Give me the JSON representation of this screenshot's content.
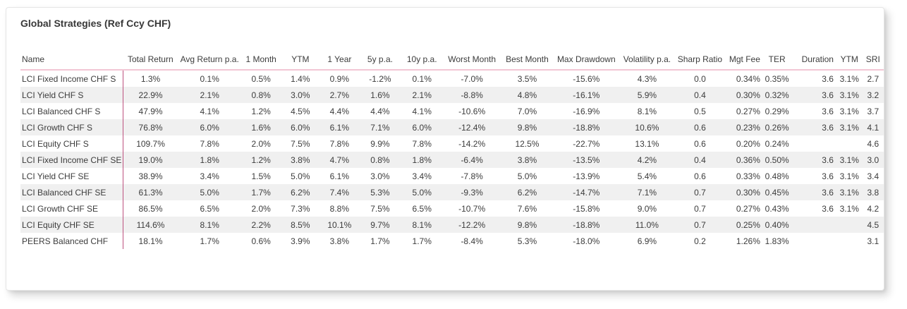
{
  "colors": {
    "accent_line": "#bd517e",
    "header_underline": "#f2c6d4",
    "row_stripe": "#f0f0f0"
  },
  "chart_data": {
    "type": "table",
    "title": "Global Strategies (Ref Ccy CHF)",
    "columns": [
      "Name",
      "Total Return",
      "Avg Return p.a.",
      "1 Month",
      "YTM",
      "1 Year",
      "5y p.a.",
      "10y p.a.",
      "Worst Month",
      "Best Month",
      "Max Drawdown",
      "Volatility p.a.",
      "Sharp Ratio",
      "Mgt Fee",
      "TER",
      "Duration",
      "YTM",
      "SRI"
    ],
    "rows": [
      [
        "LCI Fixed Income CHF S",
        "1.3%",
        "0.1%",
        "0.5%",
        "1.4%",
        "0.9%",
        "-1.2%",
        "0.1%",
        "-7.0%",
        "3.5%",
        "-15.6%",
        "4.3%",
        "0.0",
        "0.34%",
        "0.35%",
        "3.6",
        "3.1%",
        "2.7"
      ],
      [
        "LCI Yield CHF S",
        "22.9%",
        "2.1%",
        "0.8%",
        "3.0%",
        "2.7%",
        "1.6%",
        "2.1%",
        "-8.8%",
        "4.8%",
        "-16.1%",
        "5.9%",
        "0.4",
        "0.30%",
        "0.32%",
        "3.6",
        "3.1%",
        "3.2"
      ],
      [
        "LCI Balanced CHF S",
        "47.9%",
        "4.1%",
        "1.2%",
        "4.5%",
        "4.4%",
        "4.4%",
        "4.1%",
        "-10.6%",
        "7.0%",
        "-16.9%",
        "8.1%",
        "0.5",
        "0.27%",
        "0.29%",
        "3.6",
        "3.1%",
        "3.7"
      ],
      [
        "LCI Growth CHF S",
        "76.8%",
        "6.0%",
        "1.6%",
        "6.0%",
        "6.1%",
        "7.1%",
        "6.0%",
        "-12.4%",
        "9.8%",
        "-18.8%",
        "10.6%",
        "0.6",
        "0.23%",
        "0.26%",
        "3.6",
        "3.1%",
        "4.1"
      ],
      [
        "LCI Equity CHF S",
        "109.7%",
        "7.8%",
        "2.0%",
        "7.5%",
        "7.8%",
        "9.9%",
        "7.8%",
        "-14.2%",
        "12.5%",
        "-22.7%",
        "13.1%",
        "0.6",
        "0.20%",
        "0.24%",
        "",
        "",
        "4.6"
      ],
      [
        "LCI Fixed Income CHF SE",
        "19.0%",
        "1.8%",
        "1.2%",
        "3.8%",
        "4.7%",
        "0.8%",
        "1.8%",
        "-6.4%",
        "3.8%",
        "-13.5%",
        "4.2%",
        "0.4",
        "0.36%",
        "0.50%",
        "3.6",
        "3.1%",
        "3.0"
      ],
      [
        "LCI Yield CHF SE",
        "38.9%",
        "3.4%",
        "1.5%",
        "5.0%",
        "6.1%",
        "3.0%",
        "3.4%",
        "-7.8%",
        "5.0%",
        "-13.9%",
        "5.4%",
        "0.6",
        "0.33%",
        "0.48%",
        "3.6",
        "3.1%",
        "3.4"
      ],
      [
        "LCI Balanced CHF SE",
        "61.3%",
        "5.0%",
        "1.7%",
        "6.2%",
        "7.4%",
        "5.3%",
        "5.0%",
        "-9.3%",
        "6.2%",
        "-14.7%",
        "7.1%",
        "0.7",
        "0.30%",
        "0.45%",
        "3.6",
        "3.1%",
        "3.8"
      ],
      [
        "LCI Growth CHF SE",
        "86.5%",
        "6.5%",
        "2.0%",
        "7.3%",
        "8.8%",
        "7.5%",
        "6.5%",
        "-10.7%",
        "7.6%",
        "-15.8%",
        "9.0%",
        "0.7",
        "0.27%",
        "0.43%",
        "3.6",
        "3.1%",
        "4.2"
      ],
      [
        "LCI Equity CHF SE",
        "114.6%",
        "8.1%",
        "2.2%",
        "8.5%",
        "10.1%",
        "9.7%",
        "8.1%",
        "-12.2%",
        "9.8%",
        "-18.8%",
        "11.0%",
        "0.7",
        "0.25%",
        "0.40%",
        "",
        "",
        "4.5"
      ],
      [
        "PEERS Balanced CHF",
        "18.1%",
        "1.7%",
        "0.6%",
        "3.9%",
        "3.8%",
        "1.7%",
        "1.7%",
        "-8.4%",
        "5.3%",
        "-18.0%",
        "6.9%",
        "0.2",
        "1.26%",
        "1.83%",
        "",
        "",
        "3.1"
      ]
    ]
  }
}
